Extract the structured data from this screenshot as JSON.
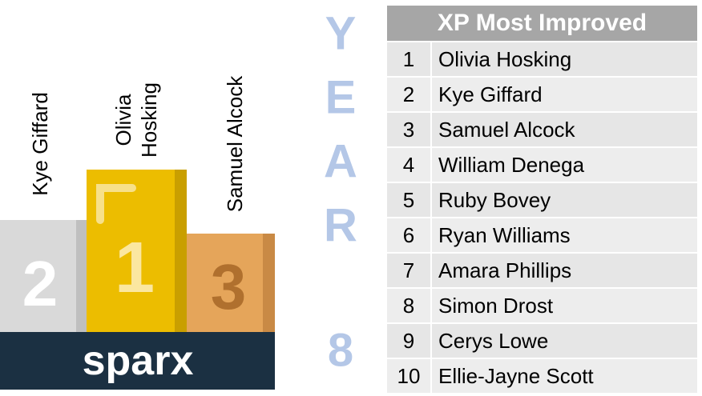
{
  "podium": {
    "second": "Kye Giffard",
    "first": "Olivia Hosking",
    "third": "Samuel Alcock",
    "second_digit": "2",
    "first_digit": "1",
    "third_digit": "3",
    "logo": "sparx"
  },
  "year": {
    "letters": [
      "Y",
      "E",
      "A",
      "R"
    ],
    "number": "8"
  },
  "table": {
    "title": "XP Most Improved",
    "rows": [
      [
        1,
        "Olivia Hosking"
      ],
      [
        2,
        "Kye Giffard"
      ],
      [
        3,
        "Samuel Alcock"
      ],
      [
        4,
        "William Denega"
      ],
      [
        5,
        "Ruby Bovey"
      ],
      [
        6,
        "Ryan Williams"
      ],
      [
        7,
        "Amara Phillips"
      ],
      [
        8,
        "Simon Drost"
      ],
      [
        9,
        "Cerys Lowe"
      ],
      [
        10,
        "Ellie-Jayne Scott"
      ]
    ]
  }
}
